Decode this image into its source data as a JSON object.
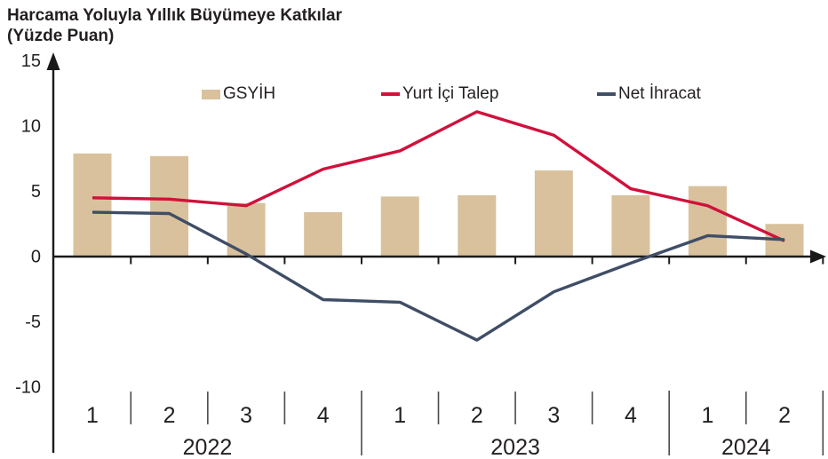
{
  "title": "Harcama Yoluyla Yıllık Büyümeye Katkılar",
  "subtitle": "(Yüzde Puan)",
  "chart_data": {
    "type": "bar",
    "title": "Harcama Yoluyla Yıllık Büyümeye Katkılar",
    "subtitle": "(Yüzde Puan)",
    "xlabel": "",
    "ylabel": "",
    "grid": false,
    "legend_position": "top-inside",
    "ylim": [
      -10,
      15
    ],
    "yticks": [
      15,
      10,
      5,
      0,
      -5,
      -10
    ],
    "quarters": [
      "1",
      "2",
      "3",
      "4",
      "1",
      "2",
      "3",
      "4",
      "1",
      "2"
    ],
    "year_groups": [
      {
        "label": "2022",
        "from": 0,
        "to": 3
      },
      {
        "label": "2023",
        "from": 4,
        "to": 7
      },
      {
        "label": "2024",
        "from": 8,
        "to": 9
      }
    ],
    "series": [
      {
        "id": "gsyih",
        "name": "GSYİH",
        "kind": "bar",
        "color": "#d8c19c",
        "values": [
          7.9,
          7.7,
          4.1,
          3.4,
          4.6,
          4.7,
          6.6,
          4.7,
          5.4,
          2.5
        ]
      },
      {
        "id": "yurt-ici-talep",
        "name": "Yurt İçi Talep",
        "kind": "line",
        "color": "#d0113b",
        "values": [
          4.5,
          4.4,
          3.9,
          6.7,
          8.1,
          11.1,
          9.3,
          5.2,
          3.9,
          1.2
        ]
      },
      {
        "id": "net-ihracat",
        "name": "Net İhracat",
        "kind": "line",
        "color": "#3f4e66",
        "values": [
          3.4,
          3.3,
          0.2,
          -3.3,
          -3.5,
          -6.4,
          -2.7,
          -0.5,
          1.6,
          1.3
        ]
      }
    ],
    "axis_color": "#1a1a1a",
    "separator_color": "#4a4a4a",
    "text_color": "#231f20"
  }
}
